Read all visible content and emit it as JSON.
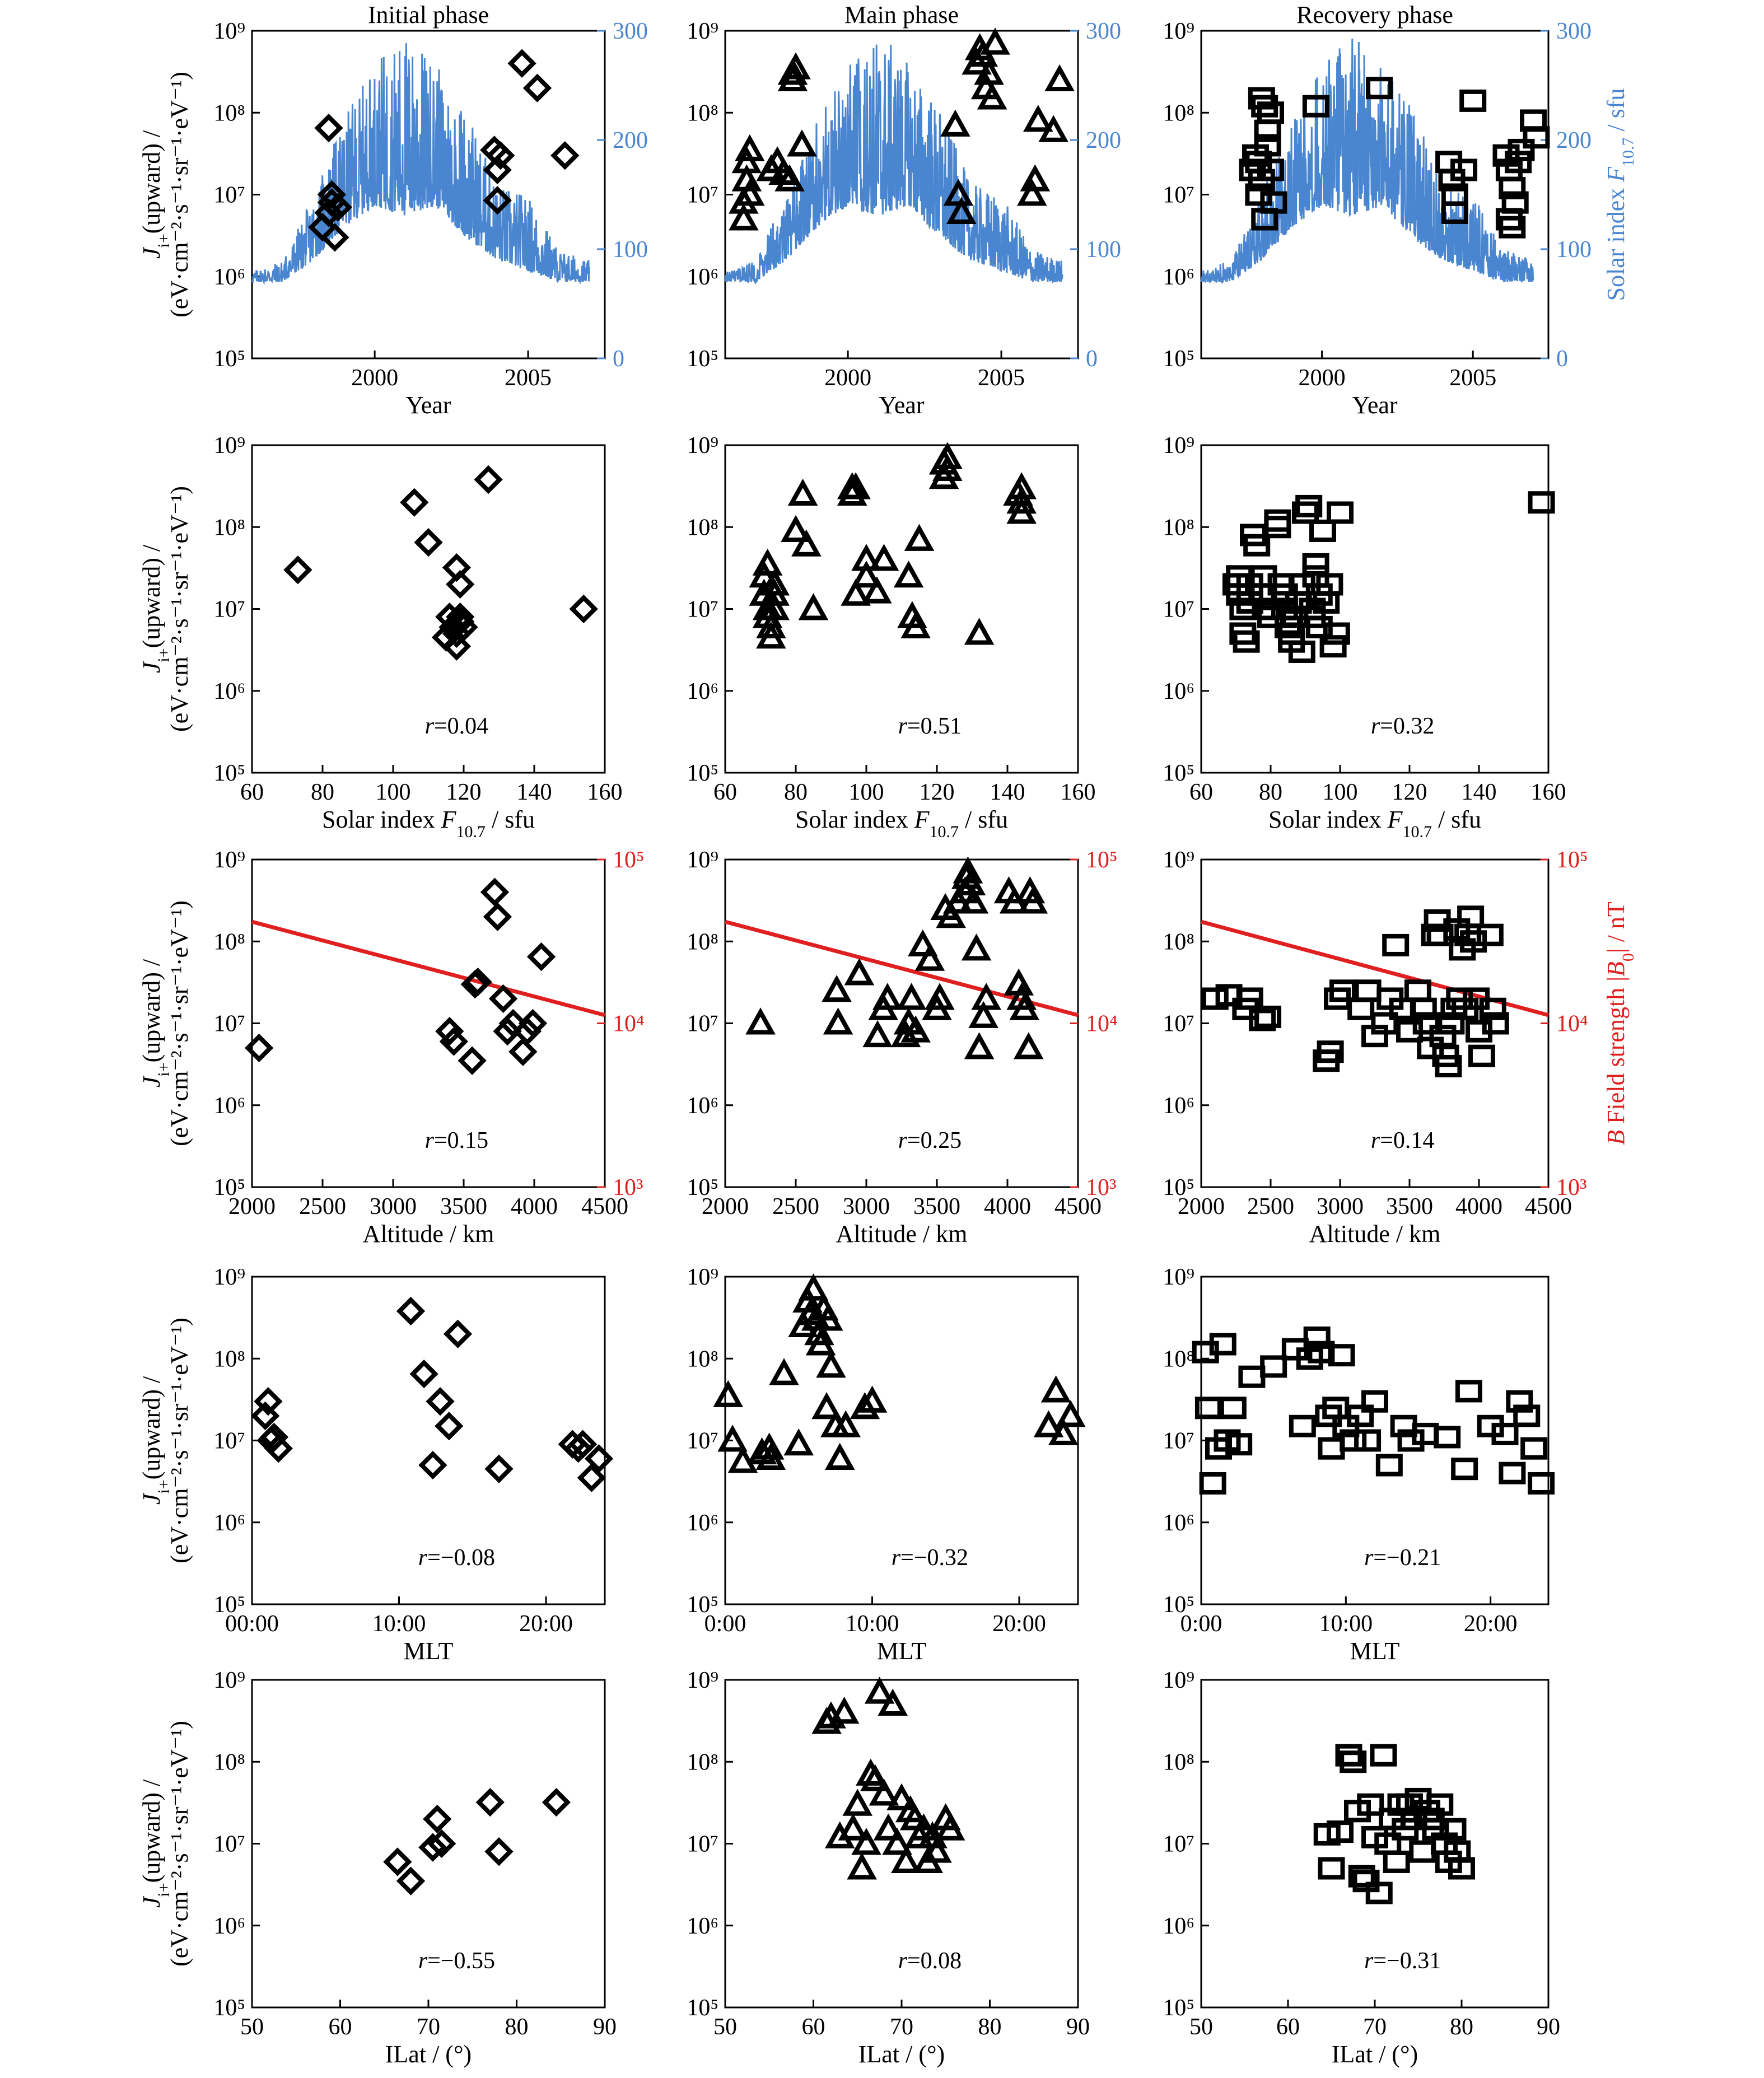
{
  "phases": [
    "Initial phase",
    "Main phase",
    "Recovery phase"
  ],
  "colors": {
    "solar": "#4a86d0",
    "bfield": "#e02020",
    "marker": "#000000"
  },
  "markers": [
    "diamond",
    "triangle",
    "square"
  ],
  "y_label_line1": "J",
  "y_label_sub": "i+",
  "y_label_rest": "(upward) /",
  "y_label_line2": "(eV·cm⁻²·s⁻¹·sr⁻¹·eV⁻¹)",
  "y_ticks": [
    "10⁵",
    "10⁶",
    "10⁷",
    "10⁸",
    "10⁹"
  ],
  "solar_axis_label": "Solar index F",
  "solar_axis_sub": "10.7",
  "solar_axis_unit": " / sfu",
  "b_axis_label_italic": "B",
  "b_axis_label_rest": " Field strength |B",
  "b_axis_sub": "0",
  "b_axis_unit": "| / nT",
  "rows": [
    {
      "key": "year",
      "xlabel": "Year",
      "xlim": [
        1996,
        2007.5
      ],
      "xticks": [
        2000,
        2005
      ],
      "xtick_labels": [
        "2000",
        "2005"
      ]
    },
    {
      "key": "f107",
      "xlabel": "Solar index F10.7 / sfu",
      "xlim": [
        60,
        160
      ],
      "xticks": [
        60,
        80,
        100,
        120,
        140,
        160
      ],
      "xtick_labels": [
        "60",
        "80",
        "100",
        "120",
        "140",
        "160"
      ]
    },
    {
      "key": "alt",
      "xlabel": "Altitude / km",
      "xlim": [
        2000,
        4500
      ],
      "xticks": [
        2000,
        2500,
        3000,
        3500,
        4000,
        4500
      ],
      "xtick_labels": [
        "2000",
        "2500",
        "3000",
        "3500",
        "4000",
        "4500"
      ]
    },
    {
      "key": "mlt",
      "xlabel": "MLT",
      "xlim": [
        0,
        24
      ],
      "xticks": [
        0,
        10,
        20
      ],
      "xtick_labels_by_col": [
        [
          "00:00",
          "10:00",
          "20:00"
        ],
        [
          "0:00",
          "10:00",
          "20:00"
        ],
        [
          "0:00",
          "10:00",
          "20:00"
        ]
      ]
    },
    {
      "key": "ilat",
      "xlabel": "ILat / (°)",
      "xlim": [
        50,
        90
      ],
      "xticks": [
        50,
        60,
        70,
        80,
        90
      ],
      "xtick_labels": [
        "50",
        "60",
        "70",
        "80",
        "90"
      ]
    }
  ],
  "correlations": [
    [
      "r=0.04",
      "r=0.51",
      "r=0.32"
    ],
    [
      "r=0.15",
      "r=0.25",
      "r=0.14"
    ],
    [
      "r=−0.08",
      "r=−0.32",
      "r=−0.21"
    ],
    [
      "r=−0.55",
      "r=0.08",
      "r=−0.31"
    ]
  ],
  "right_axes": {
    "solar": {
      "lim": [
        0,
        300
      ],
      "ticks": [
        "0",
        "100",
        "200",
        "300"
      ]
    },
    "bfield": {
      "lim": [
        3,
        5
      ],
      "ticks": [
        "10³",
        "10⁴",
        "10⁵"
      ],
      "line_endpoints_log10": [
        [
          2000,
          4.62
        ],
        [
          4500,
          4.05
        ]
      ]
    }
  },
  "chart_data": [
    {
      "type": "scatter",
      "panel": "initial-year",
      "x": [
        1998.3,
        1998.5,
        1998.6,
        1998.7,
        1998.5,
        1998.6,
        1998.8,
        2003.9,
        2004.0,
        2004.0,
        2004.1,
        2004.8,
        2005.3,
        2006.2
      ],
      "y": [
        4000000.0,
        6000000.0,
        10000000.0,
        3000000.0,
        65000000.0,
        8000000.0,
        7000000.0,
        35000000.0,
        20000000.0,
        8500000.0,
        30000000.0,
        400000000.0,
        200000000.0,
        30000000.0
      ]
    },
    {
      "type": "scatter",
      "panel": "main-year",
      "x": [
        1996.6,
        1996.6,
        1996.7,
        1996.7,
        1996.8,
        1996.8,
        1997.5,
        1997.7,
        1997.9,
        1998.1,
        1998.2,
        1998.2,
        1998.3,
        1998.5,
        2003.5,
        2003.6,
        2003.7,
        2004.2,
        2004.3,
        2004.4,
        2004.5,
        2004.6,
        2004.7,
        2004.8,
        2006.0,
        2006.1,
        2006.2,
        2006.7,
        2006.9
      ],
      "y": [
        5000000.0,
        8000000.0,
        15000000.0,
        25000000.0,
        35000000.0,
        10000000.0,
        20000000.0,
        25000000.0,
        18000000.0,
        15000000.0,
        300000000.0,
        250000000.0,
        350000000.0,
        40000000.0,
        70000000.0,
        10000000.0,
        6000000.0,
        400000000.0,
        600000000.0,
        500000000.0,
        200000000.0,
        300000000.0,
        150000000.0,
        700000000.0,
        10000000.0,
        15000000.0,
        80000000.0,
        60000000.0,
        250000000.0
      ]
    },
    {
      "type": "scatter",
      "panel": "recovery-year",
      "x": [
        1997.7,
        1997.8,
        1997.9,
        1998.0,
        1998.1,
        1998.2,
        1998.3,
        1998.2,
        1998.1,
        1997.9,
        1998.0,
        1998.3,
        1998.4,
        1999.8,
        2001.9,
        2004.2,
        2004.3,
        2004.4,
        2004.4,
        2004.7,
        2005.0,
        2006.1,
        2006.2,
        2006.3,
        2006.4,
        2006.2,
        2006.3,
        2006.5,
        2006.6,
        2007.0,
        2007.1
      ],
      "y": [
        20000000.0,
        30000000.0,
        10000000.0,
        150000000.0,
        120000000.0,
        60000000.0,
        100000000.0,
        40000000.0,
        5000000.0,
        25000000.0,
        15000000.0,
        20000000.0,
        8000000.0,
        120000000.0,
        200000000.0,
        25000000.0,
        15000000.0,
        10000000.0,
        6000000.0,
        20000000.0,
        140000000.0,
        30000000.0,
        20000000.0,
        12000000.0,
        8000000.0,
        5000000.0,
        4000000.0,
        25000000.0,
        35000000.0,
        80000000.0,
        50000000.0
      ]
    },
    {
      "type": "scatter",
      "panel": "initial-f107",
      "x": [
        73,
        106,
        110,
        118,
        119,
        119,
        117,
        118,
        116,
        119,
        120,
        118,
        115,
        127,
        154
      ],
      "y": [
        30000000.0,
        200000000.0,
        65000000.0,
        32000000.0,
        20000000.0,
        8000000.0,
        6000000.0,
        5000000.0,
        8000000.0,
        7000000.0,
        6000000.0,
        3500000.0,
        4500000.0,
        380000000.0,
        10000000.0
      ],
      "ylim_log10": [
        5,
        9
      ]
    },
    {
      "type": "scatter",
      "panel": "main-f107",
      "x": [
        71,
        71,
        72,
        72,
        72,
        73,
        73,
        74,
        74,
        74,
        80,
        82,
        83,
        85,
        96,
        96,
        97,
        97,
        100,
        100,
        103,
        105,
        112,
        113,
        114,
        115,
        122,
        122,
        123,
        123,
        132,
        143,
        144,
        144,
        144
      ],
      "y": [
        15000000.0,
        25000000.0,
        35000000.0,
        10000000.0,
        8000000.0,
        6000000.0,
        4500000.0,
        10000000.0,
        15000000.0,
        20000000.0,
        90000000.0,
        250000000.0,
        60000000.0,
        10000000.0,
        250000000.0,
        300000000.0,
        300000000.0,
        15000000.0,
        25000000.0,
        40000000.0,
        16000000.0,
        40000000.0,
        25000000.0,
        8000000.0,
        6000000.0,
        70000000.0,
        600000000.0,
        400000000.0,
        700000000.0,
        500000000.0,
        5000000.0,
        250000000.0,
        300000000.0,
        200000000.0,
        150000000.0
      ],
      "ylim_log10": [
        5,
        9
      ]
    },
    {
      "type": "scatter",
      "panel": "recovery-f107",
      "x": [
        70,
        71,
        71,
        72,
        72,
        73,
        74,
        74,
        75,
        76,
        78,
        78,
        79,
        80,
        82,
        82,
        83,
        84,
        84,
        85,
        86,
        86,
        87,
        88,
        89,
        89,
        90,
        91,
        92,
        92,
        93,
        93,
        94,
        94,
        95,
        96,
        97,
        98,
        99,
        100,
        158
      ],
      "y": [
        20000000.0,
        25000000.0,
        15000000.0,
        10000000.0,
        5000000.0,
        4000000.0,
        12000000.0,
        20000000.0,
        80000000.0,
        60000000.0,
        15000000.0,
        25000000.0,
        10000000.0,
        8000000.0,
        100000000.0,
        120000000.0,
        20000000.0,
        15000000.0,
        10000000.0,
        6000000.0,
        5000000.0,
        4000000.0,
        8000000.0,
        12000000.0,
        3000000.0,
        20000000.0,
        150000000.0,
        180000000.0,
        10000000.0,
        8000000.0,
        25000000.0,
        35000000.0,
        6000000.0,
        15000000.0,
        90000000.0,
        12000000.0,
        20000000.0,
        3500000.0,
        5000000.0,
        150000000.0,
        200000000.0
      ],
      "ylim_log10": [
        5,
        9
      ]
    },
    {
      "type": "scatter",
      "panel": "initial-alt",
      "x": [
        2050,
        3400,
        3430,
        3560,
        3580,
        3600,
        3720,
        3740,
        3780,
        3810,
        3850,
        3920,
        3950,
        3990,
        4050
      ],
      "y": [
        5000000.0,
        8000000.0,
        6000000.0,
        3500000.0,
        30000000.0,
        32000000.0,
        400000000.0,
        200000000.0,
        20000000.0,
        8000000.0,
        10000000.0,
        4500000.0,
        8000000.0,
        10000000.0,
        65000000.0
      ],
      "ylim_log10": [
        5,
        9
      ]
    },
    {
      "type": "scatter",
      "panel": "main-alt",
      "x": [
        2250,
        2790,
        2800,
        2950,
        3080,
        3120,
        3150,
        3280,
        3300,
        3320,
        3350,
        3400,
        3450,
        3500,
        3520,
        3560,
        3600,
        3650,
        3700,
        3710,
        3720,
        3740,
        3760,
        3780,
        3800,
        3830,
        3850,
        4010,
        4050,
        4080,
        4100,
        4120,
        4150,
        4160,
        4180
      ],
      "y": [
        10000000.0,
        25000000.0,
        10000000.0,
        40000000.0,
        7000000.0,
        15000000.0,
        20000000.0,
        7000000.0,
        10000000.0,
        20000000.0,
        8000000.0,
        90000000.0,
        60000000.0,
        15000000.0,
        20000000.0,
        250000000.0,
        200000000.0,
        300000000.0,
        400000000.0,
        600000000.0,
        700000000.0,
        500000000.0,
        300000000.0,
        80000000.0,
        5000000.0,
        12000000.0,
        20000000.0,
        400000000.0,
        300000000.0,
        30000000.0,
        20000000.0,
        15000000.0,
        5000000.0,
        400000000.0,
        300000000.0
      ],
      "ylim_log10": [
        5,
        9
      ]
    },
    {
      "type": "scatter",
      "panel": "recovery-alt",
      "x": [
        2100,
        2200,
        2320,
        2350,
        2440,
        2480,
        2900,
        2930,
        2980,
        3020,
        3150,
        3200,
        3250,
        3320,
        3360,
        3400,
        3450,
        3500,
        3560,
        3600,
        3620,
        3650,
        3680,
        3700,
        3720,
        3740,
        3760,
        3780,
        3800,
        3820,
        3840,
        3860,
        3880,
        3900,
        3920,
        3940,
        3960,
        3980,
        4000,
        4020,
        4080,
        4100,
        4120
      ],
      "y": [
        20000000.0,
        22000000.0,
        15000000.0,
        20000000.0,
        11000000.0,
        12000000.0,
        3500000.0,
        4500000.0,
        20000000.0,
        25000000.0,
        15000000.0,
        25000000.0,
        7000000.0,
        10000000.0,
        20000000.0,
        90000000.0,
        15000000.0,
        8000000.0,
        25000000.0,
        15000000.0,
        10000000.0,
        5000000.0,
        120000000.0,
        180000000.0,
        120000000.0,
        7000000.0,
        4000000.0,
        3000000.0,
        10000000.0,
        15000000.0,
        140000000.0,
        20000000.0,
        80000000.0,
        15000000.0,
        120000000.0,
        200000000.0,
        100000000.0,
        20000000.0,
        8000000.0,
        4000000.0,
        120000000.0,
        15000000.0,
        10000000.0
      ],
      "ylim_log10": [
        5,
        9
      ]
    },
    {
      "type": "scatter",
      "panel": "initial-mlt",
      "x": [
        0.9,
        1.1,
        1.3,
        1.5,
        1.8,
        10.8,
        11.7,
        12.3,
        12.8,
        13.4,
        14.0,
        16.8,
        21.8,
        22.2,
        22.5,
        23.1,
        23.6
      ],
      "y": [
        20000000.0,
        30000000.0,
        10000000.0,
        11000000.0,
        8000000.0,
        380000000.0,
        65000000.0,
        5000000.0,
        30000000.0,
        15000000.0,
        200000000.0,
        4500000.0,
        9000000.0,
        8000000.0,
        9000000.0,
        3500000.0,
        6000000.0
      ],
      "ylim_log10": [
        5,
        9
      ]
    },
    {
      "type": "scatter",
      "panel": "main-mlt",
      "x": [
        0.2,
        0.5,
        1.2,
        2.5,
        3.0,
        3.1,
        4.0,
        5.0,
        5.3,
        5.6,
        5.8,
        6.0,
        6.2,
        6.4,
        6.5,
        6.7,
        6.9,
        7.0,
        7.2,
        7.5,
        7.8,
        8.2,
        9.5,
        10.0,
        22.0,
        22.5,
        23.0,
        23.5
      ],
      "y": [
        35000000.0,
        10000000.0,
        5500000.0,
        7000000.0,
        8000000.0,
        6000000.0,
        65000000.0,
        9000000.0,
        250000000.0,
        500000000.0,
        350000000.0,
        700000000.0,
        300000000.0,
        200000000.0,
        150000000.0,
        400000000.0,
        25000000.0,
        300000000.0,
        80000000.0,
        15000000.0,
        6000000.0,
        15000000.0,
        25000000.0,
        30000000.0,
        15000000.0,
        40000000.0,
        12000000.0,
        20000000.0
      ],
      "ylim_log10": [
        5,
        9
      ]
    },
    {
      "type": "scatter",
      "panel": "recovery-mlt",
      "x": [
        0.3,
        0.5,
        0.8,
        1.2,
        1.5,
        1.8,
        2.2,
        2.6,
        3.5,
        5.0,
        6.5,
        7.0,
        7.5,
        8.0,
        8.3,
        8.8,
        9.0,
        9.3,
        9.7,
        10.0,
        10.5,
        11.0,
        11.5,
        12.0,
        13.0,
        14.0,
        14.5,
        15.5,
        17.0,
        18.2,
        18.5,
        20.0,
        21.0,
        21.5,
        22.0,
        22.5,
        23.0,
        23.5
      ],
      "y": [
        120000000.0,
        25000000.0,
        3000000.0,
        8000000.0,
        150000000.0,
        10000000.0,
        25000000.0,
        9000000.0,
        60000000.0,
        80000000.0,
        130000000.0,
        15000000.0,
        100000000.0,
        180000000.0,
        120000000.0,
        20000000.0,
        8000000.0,
        25000000.0,
        110000000.0,
        15000000.0,
        10000000.0,
        20000000.0,
        10000000.0,
        30000000.0,
        5000000.0,
        15000000.0,
        10000000.0,
        12000000.0,
        11000000.0,
        4500000.0,
        40000000.0,
        15000000.0,
        12000000.0,
        4000000.0,
        30000000.0,
        20000000.0,
        8000000.0,
        3000000.0
      ],
      "ylim_log10": [
        5,
        9
      ]
    },
    {
      "type": "scatter",
      "panel": "initial-ilat",
      "x": [
        66.5,
        68.0,
        70.5,
        71.0,
        71.5,
        77.0,
        78.0,
        84.5
      ],
      "y": [
        6000000.0,
        3500000.0,
        9000000.0,
        20000000.0,
        10000000.0,
        32000000.0,
        8000000.0,
        32000000.0
      ],
      "ylim_log10": [
        5,
        9
      ]
    },
    {
      "type": "scatter",
      "panel": "main-ilat",
      "x": [
        61.5,
        62.0,
        63.0,
        63.5,
        64.5,
        65.0,
        65.5,
        66.0,
        66.5,
        67.0,
        67.5,
        68.0,
        68.5,
        69.0,
        69.5,
        70.0,
        70.5,
        71.0,
        71.5,
        72.0,
        72.5,
        73.0,
        73.5,
        74.0,
        75.0,
        75.5
      ],
      "y": [
        300000000.0,
        350000000.0,
        12000000.0,
        400000000.0,
        15000000.0,
        30000000.0,
        5000000.0,
        10000000.0,
        70000000.0,
        60000000.0,
        700000000.0,
        40000000.0,
        15000000.0,
        500000000.0,
        10000000.0,
        35000000.0,
        6000000.0,
        25000000.0,
        20000000.0,
        12000000.0,
        15000000.0,
        6000000.0,
        12000000.0,
        8000000.0,
        20000000.0,
        15000000.0
      ],
      "ylim_log10": [
        5,
        9
      ]
    },
    {
      "type": "scatter",
      "panel": "recovery-ilat",
      "x": [
        64.5,
        65.0,
        66.0,
        67.0,
        67.5,
        68.0,
        68.5,
        69.0,
        69.5,
        70.0,
        70.5,
        71.0,
        71.5,
        72.0,
        72.5,
        73.0,
        73.5,
        74.0,
        74.5,
        75.0,
        75.5,
        76.0,
        76.5,
        77.0,
        77.5,
        78.0,
        78.5,
        79.0,
        79.5,
        80.0
      ],
      "y": [
        13000000.0,
        5000000.0,
        14000000.0,
        120000000.0,
        100000000.0,
        25000000.0,
        4000000.0,
        3500000.0,
        30000000.0,
        12000000.0,
        2500000.0,
        120000000.0,
        10000000.0,
        20000000.0,
        6000000.0,
        30000000.0,
        15000000.0,
        30000000.0,
        20000000.0,
        35000000.0,
        8000000.0,
        25000000.0,
        20000000.0,
        15000000.0,
        30000000.0,
        10000000.0,
        6000000.0,
        15000000.0,
        8000000.0,
        5000000.0
      ],
      "ylim_log10": [
        5,
        9
      ]
    },
    {
      "type": "line",
      "panel": "solar-f107-series",
      "x_range": [
        1996,
        2007
      ],
      "y_envelope_sfu": {
        "1996": [
          70,
          80
        ],
        "1997": [
          70,
          90
        ],
        "1998": [
          90,
          150
        ],
        "1999": [
          120,
          220
        ],
        "2000": [
          140,
          270
        ],
        "2001": [
          130,
          300
        ],
        "2002": [
          140,
          270
        ],
        "2003": [
          110,
          230
        ],
        "2004": [
          90,
          160
        ],
        "2005": [
          80,
          150
        ],
        "2006": [
          70,
          100
        ],
        "2007": [
          70,
          90
        ]
      }
    }
  ]
}
